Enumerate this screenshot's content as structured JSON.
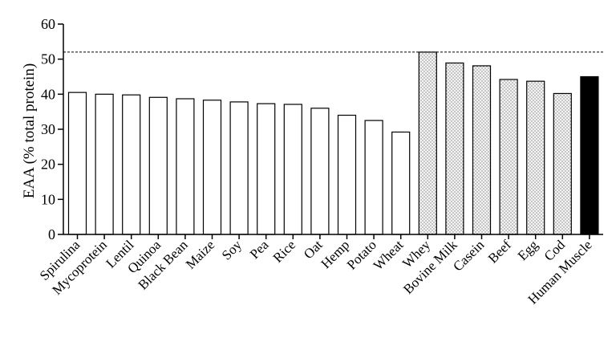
{
  "chart_data": {
    "type": "bar",
    "ylabel": "EAA (% total protein)",
    "xlabel": "",
    "ylim": [
      0,
      60
    ],
    "yticks": [
      0,
      10,
      20,
      30,
      40,
      50,
      60
    ],
    "reference_line": 52,
    "grid": false,
    "categories": [
      "Spirulina",
      "Mycoprotein",
      "Lentil",
      "Quinoa",
      "Black Bean",
      "Maize",
      "Soy",
      "Pea",
      "Rice",
      "Oat",
      "Hemp",
      "Potato",
      "Wheat",
      "Whey",
      "Bovine Milk",
      "Casein",
      "Beef",
      "Egg",
      "Cod",
      "Human Muscle"
    ],
    "values": [
      40.5,
      40,
      39.8,
      39.1,
      38.7,
      38.3,
      37.8,
      37.3,
      37.1,
      36,
      34,
      32.5,
      29.2,
      52,
      48.9,
      48.1,
      44.2,
      43.7,
      40.2,
      45
    ],
    "fill_types": [
      "plain",
      "plain",
      "plain",
      "plain",
      "plain",
      "plain",
      "plain",
      "plain",
      "plain",
      "plain",
      "plain",
      "plain",
      "plain",
      "dotted",
      "dotted",
      "dotted",
      "dotted",
      "dotted",
      "dotted",
      "solid"
    ],
    "colors": {
      "plain": "#ffffff",
      "dotted": "#f2f2f2",
      "solid": "#000000",
      "stroke": "#000000"
    }
  }
}
